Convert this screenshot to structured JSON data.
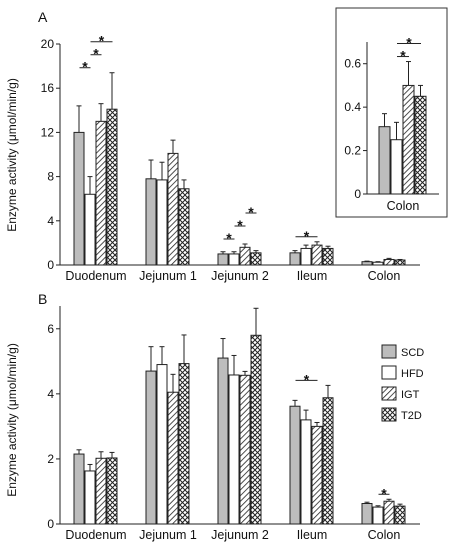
{
  "patterns": {
    "SCD": "solid-gray",
    "HFD": "white",
    "IGT": "diagonal-hatch",
    "T2D": "crosshatch"
  },
  "colors": {
    "SCD": "#bdbdbd",
    "HFD": "#ffffff",
    "IGT": "#ffffff",
    "T2D": "#ffffff",
    "stroke": "#222222"
  },
  "legend": {
    "position": "top-right of panel B",
    "entries": [
      "SCD",
      "HFD",
      "IGT",
      "T2D"
    ]
  },
  "chart_data": [
    {
      "type": "bar",
      "panel": "A",
      "ylabel": "Enzyme activity (μmol/min/g)",
      "ylim": [
        0,
        20
      ],
      "yticks": [
        "0",
        "4",
        "8",
        "12",
        "16",
        "20"
      ],
      "categories": [
        "Duodenum",
        "Jejunum 1",
        "Jejunum 2",
        "Ileum",
        "Colon"
      ],
      "series": [
        {
          "name": "SCD",
          "values": [
            12.0,
            7.8,
            1.0,
            1.1,
            0.3
          ],
          "errors": [
            2.4,
            1.7,
            0.2,
            0.2,
            0.05
          ]
        },
        {
          "name": "HFD",
          "values": [
            6.4,
            7.7,
            1.0,
            1.5,
            0.25
          ],
          "errors": [
            1.6,
            1.6,
            0.2,
            0.3,
            0.05
          ]
        },
        {
          "name": "IGT",
          "values": [
            13.0,
            10.1,
            1.6,
            1.8,
            0.5
          ],
          "errors": [
            1.6,
            1.2,
            0.3,
            0.3,
            0.1
          ]
        },
        {
          "name": "T2D",
          "values": [
            14.1,
            6.9,
            1.1,
            1.5,
            0.45
          ],
          "errors": [
            3.3,
            0.8,
            0.2,
            0.2,
            0.05
          ]
        }
      ],
      "significance": [
        {
          "category": "Duodenum",
          "from": "SCD",
          "to": "HFD",
          "label": "*"
        },
        {
          "category": "Duodenum",
          "from": "HFD",
          "to": "IGT",
          "label": "*"
        },
        {
          "category": "Duodenum",
          "from": "HFD",
          "to": "T2D",
          "label": "*"
        },
        {
          "category": "Jejunum 2",
          "from": "SCD",
          "to": "HFD",
          "label": "*"
        },
        {
          "category": "Jejunum 2",
          "from": "HFD",
          "to": "IGT",
          "label": "*"
        },
        {
          "category": "Jejunum 2",
          "from": "IGT",
          "to": "T2D",
          "label": "*"
        },
        {
          "category": "Ileum",
          "from": "SCD",
          "to": "IGT",
          "label": "*"
        }
      ],
      "inset": {
        "categories": [
          "Colon"
        ],
        "ylim": [
          0,
          0.7
        ],
        "yticks": [
          "0",
          "0.2",
          "0.4",
          "0.6"
        ],
        "series": [
          {
            "name": "SCD",
            "values": [
              0.31
            ],
            "errors": [
              0.06
            ]
          },
          {
            "name": "HFD",
            "values": [
              0.25
            ],
            "errors": [
              0.08
            ]
          },
          {
            "name": "IGT",
            "values": [
              0.5
            ],
            "errors": [
              0.11
            ]
          },
          {
            "name": "T2D",
            "values": [
              0.45
            ],
            "errors": [
              0.05
            ]
          }
        ],
        "significance": [
          {
            "from": "HFD",
            "to": "IGT",
            "label": "*"
          },
          {
            "from": "HFD",
            "to": "T2D",
            "label": "*"
          }
        ]
      }
    },
    {
      "type": "bar",
      "panel": "B",
      "ylabel": "Enzyme activity (μmol/min/g)",
      "ylim": [
        0,
        6.7
      ],
      "yticks": [
        "0",
        "2",
        "4",
        "6"
      ],
      "categories": [
        "Duodenum",
        "Jejunum 1",
        "Jejunum 2",
        "Ileum",
        "Colon"
      ],
      "series": [
        {
          "name": "SCD",
          "values": [
            2.15,
            4.7,
            5.1,
            3.62,
            0.63
          ],
          "errors": [
            0.13,
            0.75,
            0.6,
            0.18,
            0.04
          ]
        },
        {
          "name": "HFD",
          "values": [
            1.63,
            4.9,
            4.58,
            3.2,
            0.52
          ],
          "errors": [
            0.2,
            0.55,
            0.6,
            0.3,
            0.04
          ]
        },
        {
          "name": "IGT",
          "values": [
            2.02,
            4.05,
            4.57,
            3.0,
            0.7
          ],
          "errors": [
            0.2,
            0.55,
            0.12,
            0.12,
            0.06
          ]
        },
        {
          "name": "T2D",
          "values": [
            2.03,
            4.93,
            5.8,
            3.88,
            0.55
          ],
          "errors": [
            0.17,
            0.88,
            0.83,
            0.38,
            0.06
          ]
        }
      ],
      "significance": [
        {
          "category": "Ileum",
          "from": "SCD",
          "to": "IGT",
          "label": "*"
        },
        {
          "category": "Colon",
          "from": "HFD",
          "to": "IGT",
          "label": "*"
        }
      ]
    }
  ],
  "text": {
    "panel_a": "A",
    "panel_b": "B",
    "ylabel_a": "Enzyme activity (μmol/min/g)",
    "ylabel_b": "Enzyme activity (μmol/min/g)",
    "inset_label": "Colon"
  }
}
